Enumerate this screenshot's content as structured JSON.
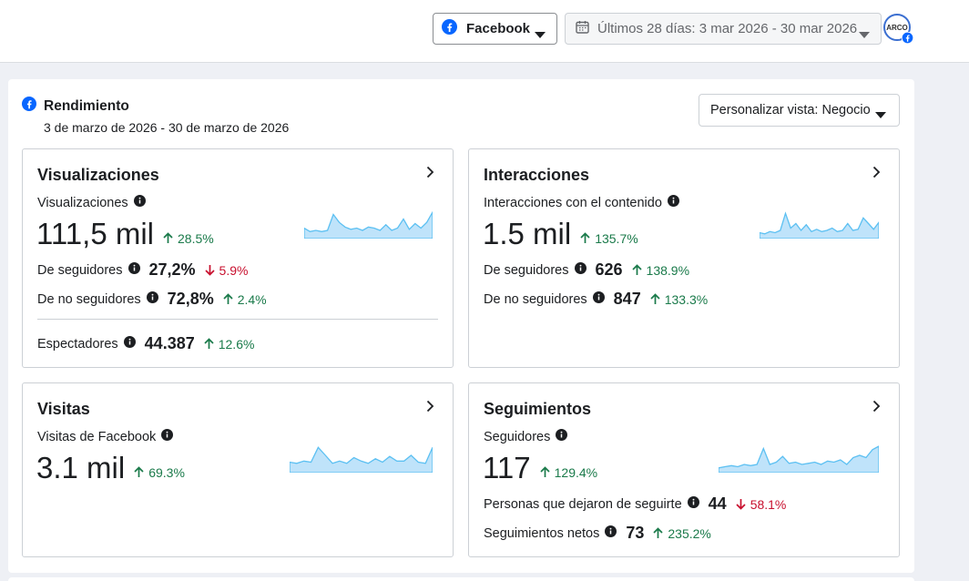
{
  "header": {
    "platform": "Facebook",
    "date_range": "Últimos 28 días: 3 mar 2026 - 30 mar 2026",
    "avatar_text": "ARCO"
  },
  "section": {
    "title": "Rendimiento",
    "subtitle": "3 de marzo de 2026 - 30 de marzo de 2026",
    "view_select": "Personalizar vista: Negocio"
  },
  "cards": {
    "views": {
      "title": "Visualizaciones",
      "metric_label": "Visualizaciones",
      "value": "111,5 mil",
      "delta": "28.5%",
      "followers_label": "De seguidores",
      "followers_value": "27,2%",
      "followers_delta": "5.9%",
      "nonfollowers_label": "De no seguidores",
      "nonfollowers_value": "72,8%",
      "nonfollowers_delta": "2.4%",
      "viewers_label": "Espectadores",
      "viewers_value": "44.387",
      "viewers_delta": "12.6%"
    },
    "interactions": {
      "title": "Interacciones",
      "metric_label": "Interacciones con el contenido",
      "value": "1.5 mil",
      "delta": "135.7%",
      "followers_label": "De seguidores",
      "followers_value": "626",
      "followers_delta": "138.9%",
      "nonfollowers_label": "De no seguidores",
      "nonfollowers_value": "847",
      "nonfollowers_delta": "133.3%"
    },
    "visits": {
      "title": "Visitas",
      "metric_label": "Visitas de Facebook",
      "value": "3.1 mil",
      "delta": "69.3%"
    },
    "follows": {
      "title": "Seguimientos",
      "metric_label": "Seguidores",
      "value": "117",
      "delta": "129.4%",
      "unfollows_label": "Personas que dejaron de seguirte",
      "unfollows_value": "44",
      "unfollows_delta": "58.1%",
      "net_label": "Seguimientos netos",
      "net_value": "73",
      "net_delta": "235.2%"
    }
  },
  "colors": {
    "facebook_blue": "#0866ff",
    "positive": "#1a7a4a",
    "negative": "#c8102e",
    "sparkline_fill": "#bfe3fa",
    "sparkline_stroke": "#5cc0f2"
  }
}
